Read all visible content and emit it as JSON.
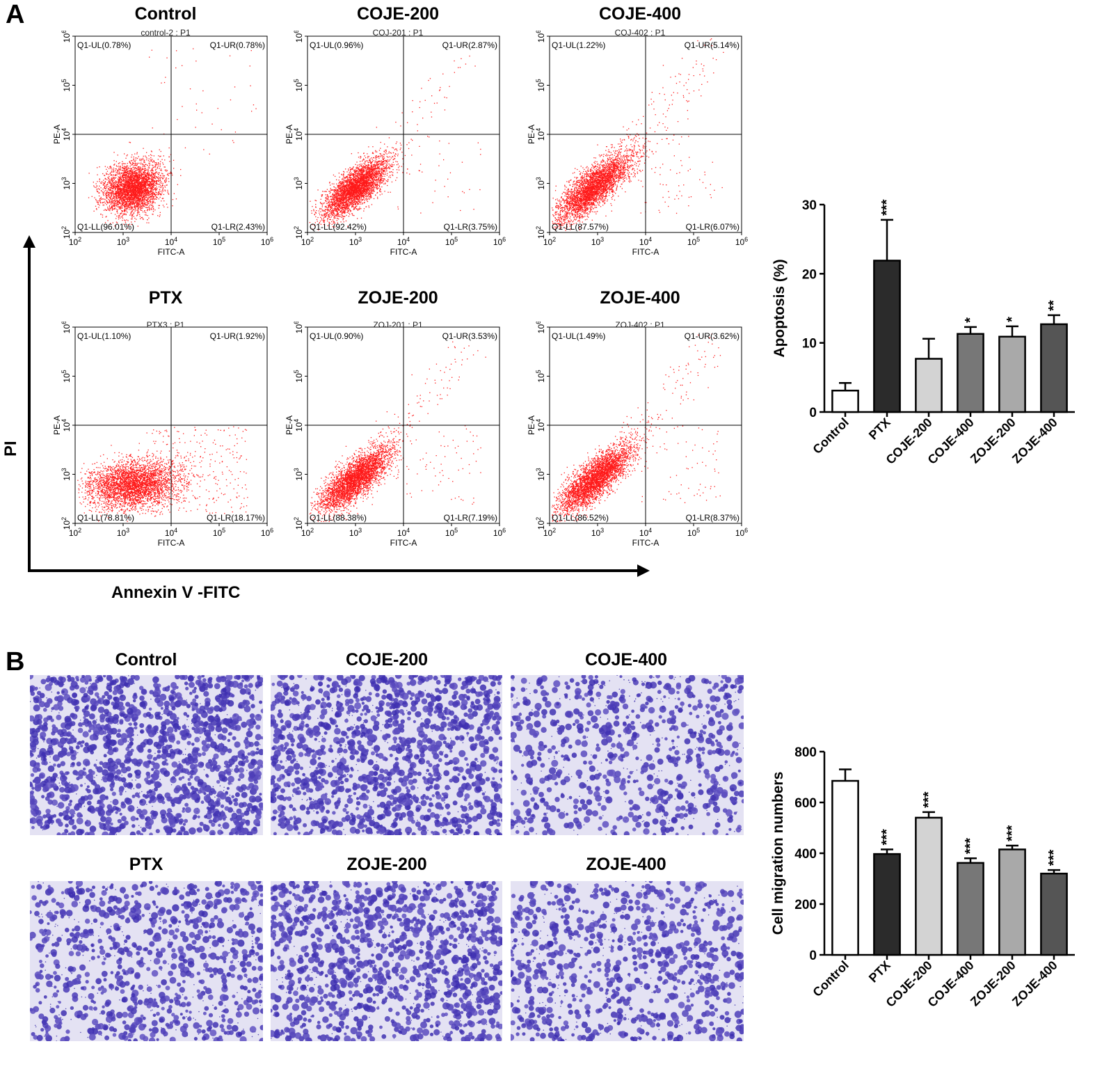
{
  "panels": {
    "a": {
      "letter": "A"
    },
    "b": {
      "letter": "B"
    }
  },
  "flow": {
    "y_axis_label": "PI",
    "x_axis_label": "Annexin V -FITC",
    "x_small_label": "FITC-A",
    "y_small_label": "PE-A",
    "x_ticks": [
      "10^2",
      "10^3",
      "10^4",
      "10^5",
      "10^6"
    ],
    "y_ticks": [
      "10^2",
      "10^3",
      "10^4",
      "10^5",
      "10^6"
    ],
    "plots": [
      {
        "title": "Control",
        "sample": "control-2 : P1",
        "ul": "Q1-UL(0.78%)",
        "ur": "Q1-UR(0.78%)",
        "ll": "Q1-LL(96.01%)",
        "lr": "Q1-LR(2.43%)"
      },
      {
        "title": "COJE-200",
        "sample": "COJ-201 : P1",
        "ul": "Q1-UL(0.96%)",
        "ur": "Q1-UR(2.87%)",
        "ll": "Q1-LL(92.42%)",
        "lr": "Q1-LR(3.75%)"
      },
      {
        "title": "COJE-400",
        "sample": "COJ-402 : P1",
        "ul": "Q1-UL(1.22%)",
        "ur": "Q1-UR(5.14%)",
        "ll": "Q1-LL(87.57%)",
        "lr": "Q1-LR(6.07%)"
      },
      {
        "title": "PTX",
        "sample": "PTX3 : P1",
        "ul": "Q1-UL(1.10%)",
        "ur": "Q1-UR(1.92%)",
        "ll": "Q1-LL(78.81%)",
        "lr": "Q1-LR(18.17%)"
      },
      {
        "title": "ZOJE-200",
        "sample": "ZOJ-201 : P1",
        "ul": "Q1-UL(0.90%)",
        "ur": "Q1-UR(3.53%)",
        "ll": "Q1-LL(88.38%)",
        "lr": "Q1-LR(7.19%)"
      },
      {
        "title": "ZOJE-400",
        "sample": "ZOJ-402 : P1",
        "ul": "Q1-UL(1.49%)",
        "ur": "Q1-UR(3.62%)",
        "ll": "Q1-LL(86.52%)",
        "lr": "Q1-LR(8.37%)"
      }
    ]
  },
  "micro": {
    "titles": [
      "Control",
      "COJE-200",
      "COJE-400",
      "PTX",
      "ZOJE-200",
      "ZOJE-400"
    ]
  },
  "colors": {
    "dots": "#ff1a1a",
    "stain": "#3d2fb0",
    "micro_bg": "#e4e2f3",
    "bars": [
      "#ffffff",
      "#2b2b2b",
      "#d3d3d3",
      "#777777",
      "#a9a9a9",
      "#555555"
    ]
  },
  "chart_data": [
    {
      "type": "bar",
      "categories": [
        "Control",
        "PTX",
        "COJE-200",
        "COJE-400",
        "ZOJE-200",
        "ZOJE-400"
      ],
      "values": [
        3.1,
        21.9,
        7.7,
        11.3,
        10.9,
        12.7
      ],
      "errors": [
        1.1,
        5.9,
        2.9,
        1.0,
        1.5,
        1.3
      ],
      "significance": [
        "",
        "***",
        "",
        "*",
        "*",
        "**"
      ],
      "title": "",
      "xlabel": "",
      "ylabel": "Apoptosis (%)",
      "ylim": [
        0,
        30
      ],
      "yticks": [
        0,
        10,
        20,
        30
      ]
    },
    {
      "type": "bar",
      "categories": [
        "Control",
        "PTX",
        "COJE-200",
        "COJE-400",
        "ZOJE-200",
        "ZOJE-400"
      ],
      "values": [
        685,
        397,
        540,
        362,
        415,
        320
      ],
      "errors": [
        45,
        18,
        22,
        18,
        15,
        14
      ],
      "significance": [
        "",
        "***",
        "***",
        "***",
        "***",
        "***"
      ],
      "title": "",
      "xlabel": "",
      "ylabel": "Cell migration numbers",
      "ylim": [
        0,
        800
      ],
      "yticks": [
        0,
        200,
        400,
        600,
        800
      ]
    }
  ]
}
